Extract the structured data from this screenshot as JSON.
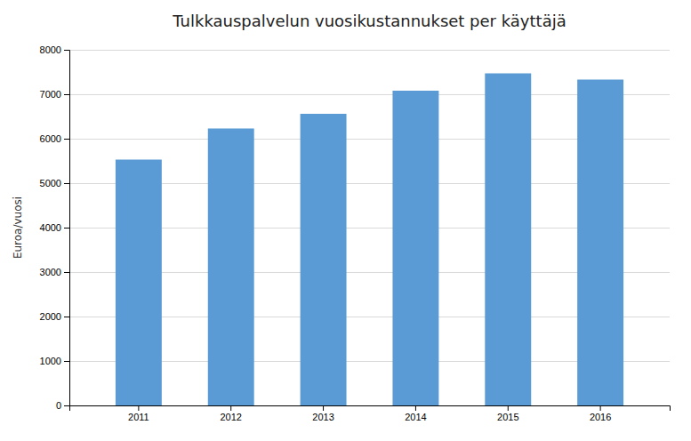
{
  "chart_data": {
    "type": "bar",
    "title": "Tulkkauspalvelun vuosikustannukset per käyttäjä",
    "categories": [
      "2011",
      "2012",
      "2013",
      "2014",
      "2015",
      "2016"
    ],
    "values": [
      5530,
      6230,
      6560,
      7080,
      7470,
      7330
    ],
    "color": "#5b9bd5",
    "ylabel": "Euroa/vuosi",
    "ylim": [
      0,
      8000
    ],
    "yticks": [
      0,
      1000,
      2000,
      3000,
      4000,
      5000,
      6000,
      7000,
      8000
    ],
    "grid": true
  }
}
